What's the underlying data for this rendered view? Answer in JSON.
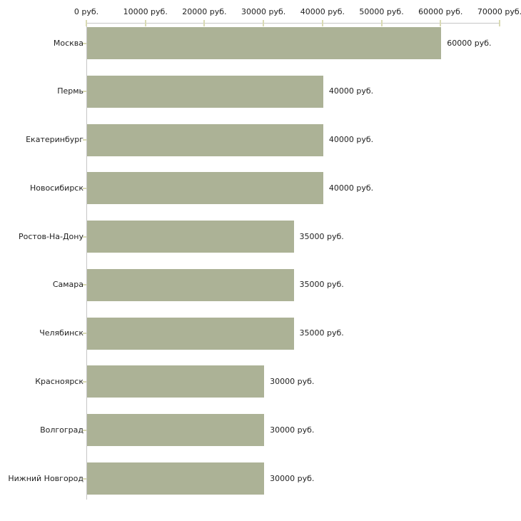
{
  "chart_data": {
    "type": "bar",
    "orientation": "horizontal",
    "title": "",
    "xlabel": "",
    "ylabel": "",
    "unit": "руб.",
    "xlim": [
      0,
      70000
    ],
    "grid": false,
    "legend": "none",
    "categories": [
      "Москва",
      "Пермь",
      "Екатеринбург",
      "Новосибирск",
      "Ростов-На-Дону",
      "Самара",
      "Челябинск",
      "Красноярск",
      "Волгоград",
      "Нижний Новгород"
    ],
    "values": [
      60000,
      40000,
      40000,
      40000,
      35000,
      35000,
      35000,
      30000,
      30000,
      30000
    ],
    "value_labels": [
      "60000 руб.",
      "40000 руб.",
      "40000 руб.",
      "40000 руб.",
      "35000 руб.",
      "35000 руб.",
      "35000 руб.",
      "30000 руб.",
      "30000 руб.",
      "30000 руб."
    ],
    "x_ticks": [
      {
        "value": 0,
        "label": "0 руб."
      },
      {
        "value": 10000,
        "label": "10000 руб."
      },
      {
        "value": 20000,
        "label": "20000 руб."
      },
      {
        "value": 30000,
        "label": "30000 руб."
      },
      {
        "value": 40000,
        "label": "40000 руб."
      },
      {
        "value": 50000,
        "label": "50000 руб."
      },
      {
        "value": 60000,
        "label": "60000 руб."
      },
      {
        "value": 70000,
        "label": "70000 руб."
      }
    ],
    "colors": {
      "bar": "#acb296",
      "axis_line": "#c6c6c6",
      "tick": "#d9dab3",
      "text": "#222222",
      "background": "#ffffff"
    }
  }
}
